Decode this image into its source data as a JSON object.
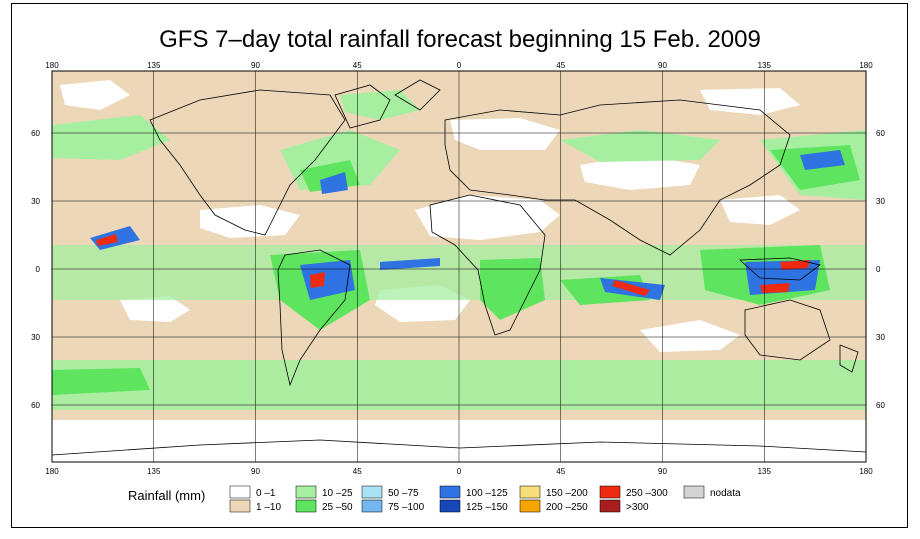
{
  "title": "GFS 7–day total rainfall forecast beginning 15 Feb. 2009",
  "lon_ticks": [
    "180",
    "135",
    "90",
    "45",
    "0",
    "45",
    "90",
    "135",
    "180"
  ],
  "lat_ticks": [
    "60",
    "30",
    "0",
    "30",
    "60"
  ],
  "legend": {
    "title": "Rainfall (mm)",
    "items": [
      {
        "label": "0 –1",
        "color": "#ffffff"
      },
      {
        "label": "1 –10",
        "color": "#ecd7b8"
      },
      {
        "label": "10 –25",
        "color": "#a6efa0"
      },
      {
        "label": "25 –50",
        "color": "#5ee45e"
      },
      {
        "label": "50 –75",
        "color": "#a8e2f4"
      },
      {
        "label": "75 –100",
        "color": "#74b6f2"
      },
      {
        "label": "100 –125",
        "color": "#2f73e2"
      },
      {
        "label": "125 –150",
        "color": "#1746b8"
      },
      {
        "label": "150 –200",
        "color": "#f8de78"
      },
      {
        "label": "200 –250",
        "color": "#f6a400"
      },
      {
        "label": "250 –300",
        "color": "#ee2a10"
      },
      {
        "label": ">300",
        "color": "#a81e1e"
      },
      {
        "label": "nodata",
        "color": "#d4d4d4"
      }
    ]
  },
  "colors": {
    "ocean_dry": "#ecd7b8",
    "light_rain": "#a6efa0",
    "moderate_rain": "#5ee45e",
    "heavy_rain": "#2f73e2",
    "extreme_rain": "#ee2a10",
    "no_rain": "#ffffff",
    "coast": "#000000"
  }
}
